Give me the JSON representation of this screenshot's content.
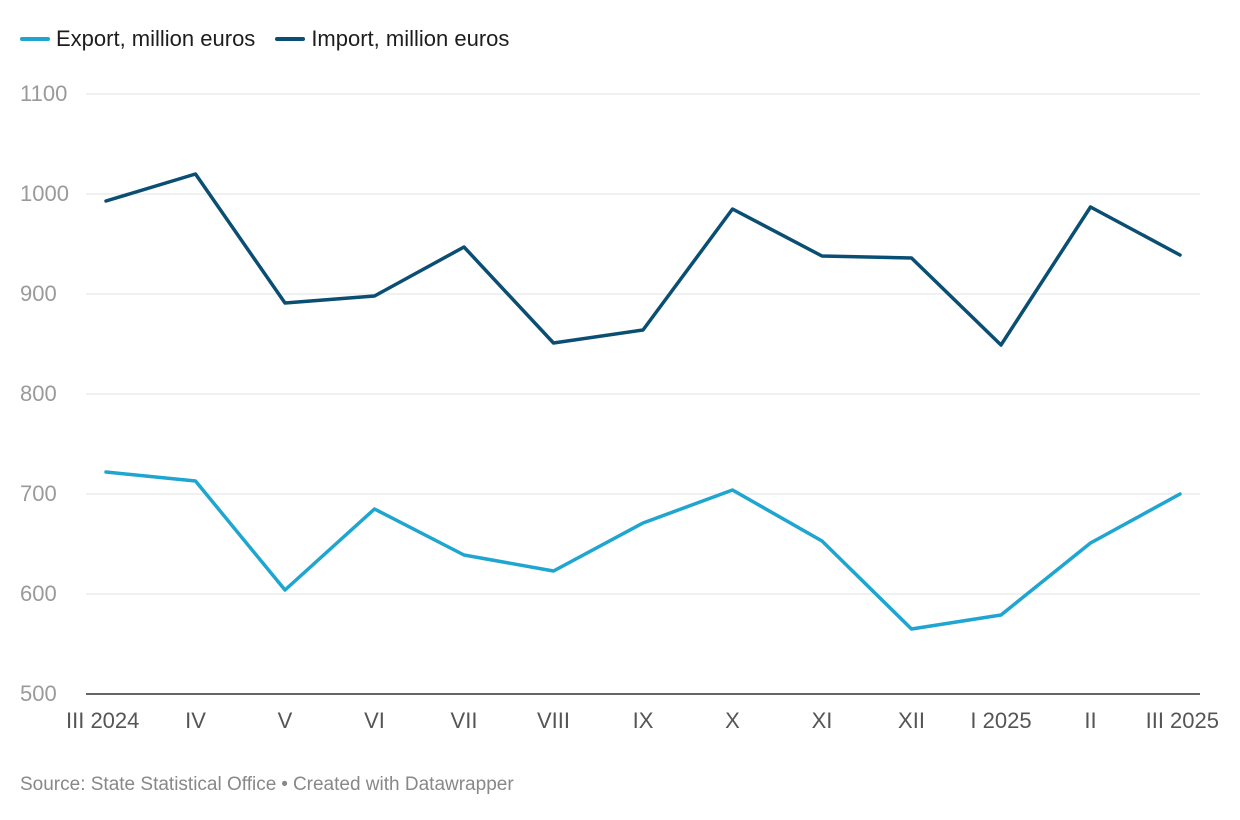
{
  "legend": {
    "export_label": "Export, million euros",
    "import_label": "Import, million euros"
  },
  "chart_data": {
    "type": "line",
    "categories": [
      "III 2024",
      "IV",
      "V",
      "VI",
      "VII",
      "VIII",
      "IX",
      "X",
      "XI",
      "XII",
      "I 2025",
      "II",
      "III 2025"
    ],
    "series": [
      {
        "name": "Export, million euros",
        "color": "#1ea5d0",
        "values": [
          722,
          713,
          604,
          685,
          639,
          623,
          671,
          704,
          653,
          565,
          579,
          651,
          700
        ]
      },
      {
        "name": "Import, million euros",
        "color": "#0a4f73",
        "values": [
          993,
          1020,
          891,
          898,
          947,
          851,
          864,
          985,
          938,
          936,
          849,
          987,
          939
        ]
      }
    ],
    "ylim": [
      500,
      1100
    ],
    "yticks": [
      500,
      600,
      700,
      800,
      900,
      1000,
      1100
    ],
    "grid": true,
    "legend_position": "top-left"
  },
  "footer": {
    "source": "Source: State Statistical Office",
    "separator": "•",
    "credit": "Created with Datawrapper"
  }
}
